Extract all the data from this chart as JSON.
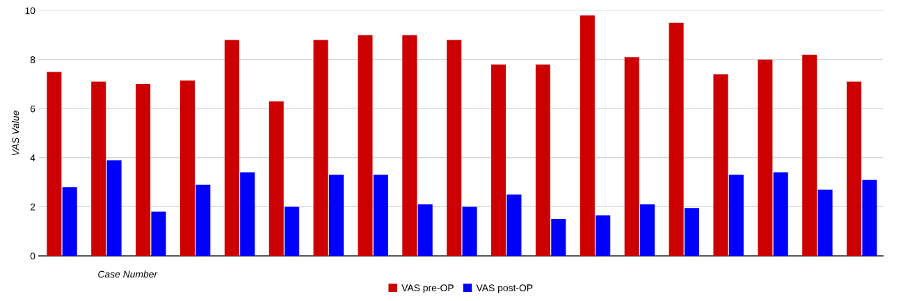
{
  "chart_data": {
    "type": "bar",
    "xlabel": "Case Number",
    "ylabel": "VAS Value",
    "categories": [
      null,
      null,
      null,
      null,
      null,
      null,
      null,
      null,
      null,
      null,
      null,
      null,
      null,
      null,
      null,
      null,
      null,
      null,
      null
    ],
    "series": [
      {
        "name": "VAS pre-OP",
        "color": "#cc0000",
        "values": [
          7.5,
          7.1,
          7.0,
          7.15,
          8.8,
          6.3,
          8.8,
          9.0,
          9.0,
          8.8,
          7.8,
          7.8,
          9.8,
          8.1,
          9.5,
          7.4,
          8.0,
          8.2,
          7.1
        ]
      },
      {
        "name": "VAS post-OP",
        "color": "#0000ff",
        "values": [
          2.8,
          3.9,
          1.8,
          2.9,
          3.4,
          2.0,
          3.3,
          3.3,
          2.1,
          2.0,
          2.5,
          1.5,
          1.65,
          2.1,
          1.95,
          3.3,
          3.4,
          2.7,
          3.1
        ]
      }
    ],
    "ylim": [
      0,
      10
    ],
    "yticks": [
      0,
      2,
      4,
      6,
      8,
      10
    ],
    "grid": "y",
    "legend": "bottom"
  }
}
